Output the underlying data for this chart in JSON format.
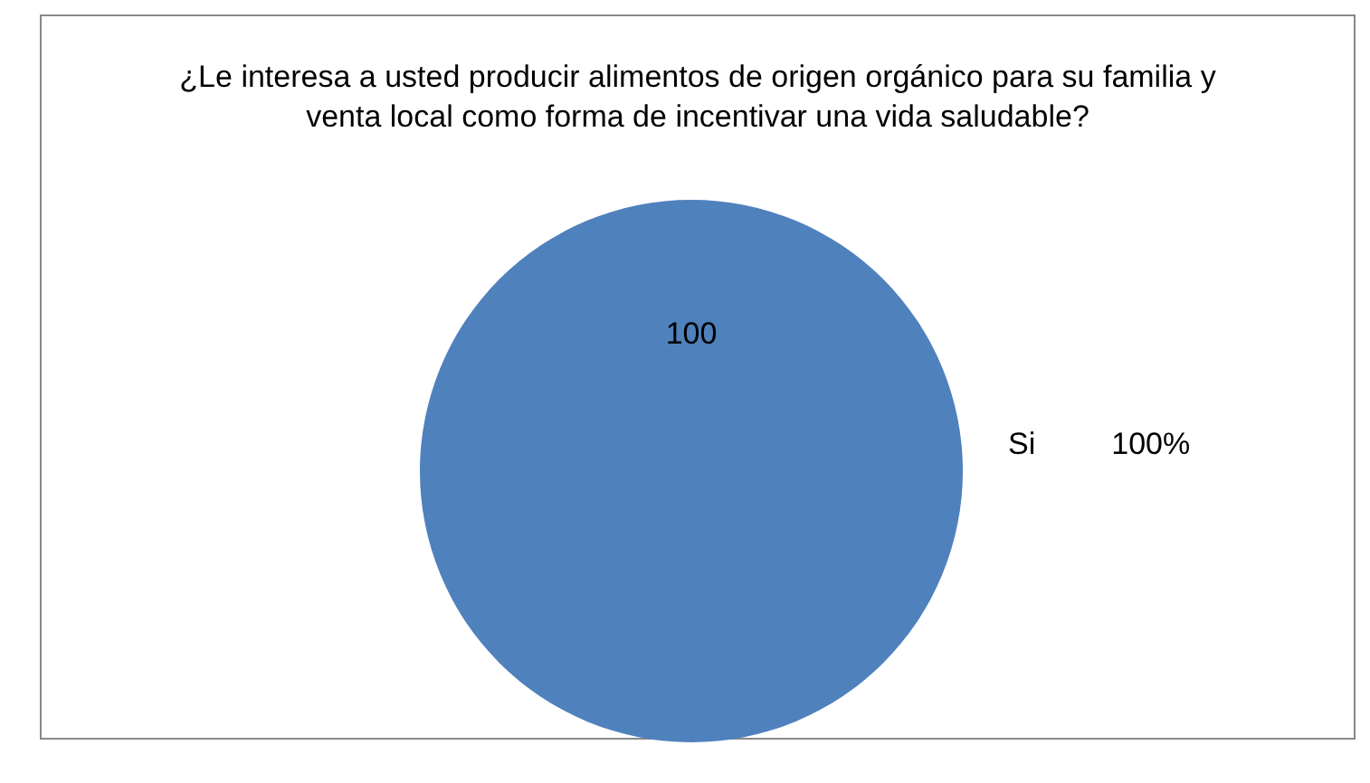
{
  "chart_data": {
    "type": "pie",
    "title": "¿Le interesa a usted producir alimentos de origen orgánico para su familia y venta local como forma de incentivar una vida saludable?",
    "categories": [
      "Si"
    ],
    "values": [
      100
    ],
    "colors": [
      "#4f81bd"
    ],
    "data_labels": true,
    "annotations": [
      "100%"
    ]
  }
}
